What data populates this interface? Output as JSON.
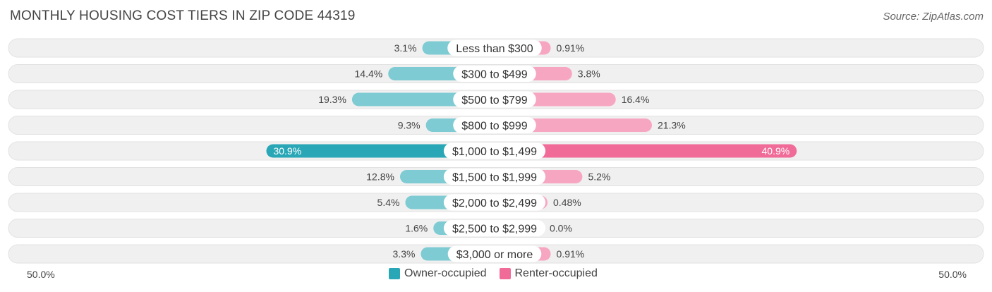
{
  "header": {
    "title": "MONTHLY HOUSING COST TIERS IN ZIP CODE 44319",
    "source": "Source: ZipAtlas.com"
  },
  "axis": {
    "left_label": "50.0%",
    "right_label": "50.0%"
  },
  "legend": {
    "owner_label": "Owner-occupied",
    "renter_label": "Renter-occupied"
  },
  "colors": {
    "owner": "#7ecbd3",
    "owner_strong": "#2aa7b6",
    "renter": "#f7a6c2",
    "renter_strong": "#f06b97",
    "row_bg": "#f0f0f0"
  },
  "chart_data": {
    "type": "bar",
    "orientation": "diverging-horizontal",
    "max_value": 50.0,
    "categories": [
      "Less than $300",
      "$300 to $499",
      "$500 to $799",
      "$800 to $999",
      "$1,000 to $1,499",
      "$1,500 to $1,999",
      "$2,000 to $2,499",
      "$2,500 to $2,999",
      "$3,000 or more"
    ],
    "series": [
      {
        "name": "Owner-occupied",
        "values": [
          3.1,
          14.4,
          19.3,
          9.3,
          30.9,
          12.8,
          5.4,
          1.6,
          3.3
        ],
        "labels": [
          "3.1%",
          "14.4%",
          "19.3%",
          "9.3%",
          "30.9%",
          "12.8%",
          "5.4%",
          "1.6%",
          "3.3%"
        ]
      },
      {
        "name": "Renter-occupied",
        "values": [
          0.91,
          3.8,
          16.4,
          21.3,
          40.9,
          5.2,
          0.48,
          0.0,
          0.91
        ],
        "labels": [
          "0.91%",
          "3.8%",
          "16.4%",
          "21.3%",
          "40.9%",
          "5.2%",
          "0.48%",
          "0.0%",
          "0.91%"
        ]
      }
    ],
    "highlight_index": 4
  }
}
